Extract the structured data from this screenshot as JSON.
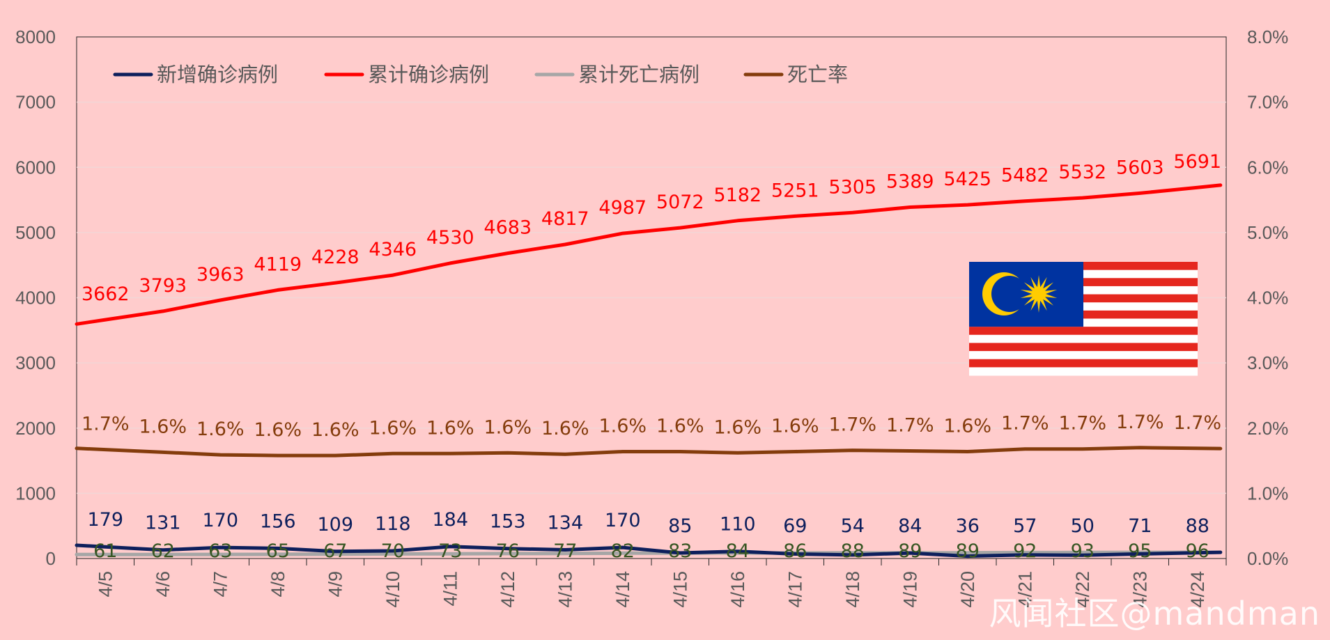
{
  "watermark": "风闻社区@mandman",
  "colors": {
    "background": "#ffcccc",
    "new_cases": "#0d1f5c",
    "cumulative_cases": "#ff0000",
    "cumulative_deaths": "#a6a6a6",
    "death_rate": "#843c0c",
    "death_labels": "#375623",
    "axis_text": "#595959",
    "gridline": "#f2d6d6"
  },
  "flag": {
    "name": "malaysia-flag-icon",
    "canton_color": "#0033a0",
    "stripe_red": "#e5271e",
    "stripe_white": "#ffffff",
    "emblem_yellow": "#ffcc00"
  },
  "chart_data": {
    "type": "line",
    "title": "",
    "xlabel": "",
    "ylabel": "",
    "categories": [
      "4/5",
      "4/6",
      "4/7",
      "4/8",
      "4/9",
      "4/10",
      "4/11",
      "4/12",
      "4/13",
      "4/14",
      "4/15",
      "4/16",
      "4/17",
      "4/18",
      "4/19",
      "4/20",
      "4/21",
      "4/22",
      "4/23",
      "4/24"
    ],
    "y_left": {
      "min": 0,
      "max": 8000,
      "ticks": [
        "0",
        "1000",
        "2000",
        "3000",
        "4000",
        "5000",
        "6000",
        "7000",
        "8000"
      ]
    },
    "y_right": {
      "min": 0,
      "max": 8,
      "ticks": [
        "0.0%",
        "1.0%",
        "2.0%",
        "3.0%",
        "4.0%",
        "5.0%",
        "6.0%",
        "7.0%",
        "8.0%"
      ]
    },
    "grid": true,
    "legend_position": "top-left",
    "series": [
      {
        "key": "new_cases",
        "name": "新增确诊病例",
        "axis": "left",
        "values": [
          179,
          131,
          170,
          156,
          109,
          118,
          184,
          153,
          134,
          170,
          85,
          110,
          69,
          54,
          84,
          36,
          57,
          50,
          71,
          88
        ],
        "labels": [
          "179",
          "131",
          "170",
          "156",
          "109",
          "118",
          "184",
          "153",
          "134",
          "170",
          "85",
          "110",
          "69",
          "54",
          "84",
          "36",
          "57",
          "50",
          "71",
          "88"
        ]
      },
      {
        "key": "cumulative_cases",
        "name": "累计确诊病例",
        "axis": "left",
        "values": [
          3662,
          3793,
          3963,
          4119,
          4228,
          4346,
          4530,
          4683,
          4817,
          4987,
          5072,
          5182,
          5251,
          5305,
          5389,
          5425,
          5482,
          5532,
          5603,
          5691
        ],
        "labels": [
          "3662",
          "3793",
          "3963",
          "4119",
          "4228",
          "4346",
          "4530",
          "4683",
          "4817",
          "4987",
          "5072",
          "5182",
          "5251",
          "5305",
          "5389",
          "5425",
          "5482",
          "5532",
          "5603",
          "5691"
        ]
      },
      {
        "key": "cumulative_deaths",
        "name": "累计死亡病例",
        "axis": "left",
        "values": [
          61,
          62,
          63,
          65,
          67,
          70,
          73,
          76,
          77,
          82,
          83,
          84,
          86,
          88,
          89,
          89,
          92,
          93,
          95,
          96
        ],
        "labels": [
          "61",
          "62",
          "63",
          "65",
          "67",
          "70",
          "73",
          "76",
          "77",
          "82",
          "83",
          "84",
          "86",
          "88",
          "89",
          "89",
          "92",
          "93",
          "95",
          "96"
        ]
      },
      {
        "key": "death_rate",
        "name": "死亡率",
        "axis": "right",
        "values": [
          1.67,
          1.63,
          1.59,
          1.58,
          1.58,
          1.61,
          1.61,
          1.62,
          1.6,
          1.64,
          1.64,
          1.62,
          1.64,
          1.66,
          1.65,
          1.64,
          1.68,
          1.68,
          1.7,
          1.69
        ],
        "labels": [
          "1.7%",
          "1.6%",
          "1.6%",
          "1.6%",
          "1.6%",
          "1.6%",
          "1.6%",
          "1.6%",
          "1.6%",
          "1.6%",
          "1.6%",
          "1.6%",
          "1.6%",
          "1.7%",
          "1.7%",
          "1.6%",
          "1.7%",
          "1.7%",
          "1.7%",
          "1.7%"
        ]
      }
    ]
  }
}
